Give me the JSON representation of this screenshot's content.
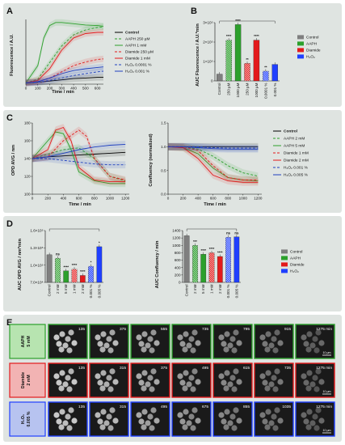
{
  "panels": {
    "A": {
      "label": "A",
      "ylabel": "Fluorescence / A.U.",
      "xlabel": "Time / min",
      "xticks": [
        "0",
        "100",
        "200",
        "300",
        "400",
        "500",
        "600"
      ],
      "legend": [
        {
          "name": "Control",
          "color": "#000000",
          "dash": "0"
        },
        {
          "name": "AAPH 250 µM",
          "color": "#2ca02c",
          "dash": "3,2"
        },
        {
          "name": "AAPH 1 mM",
          "color": "#2ca02c",
          "dash": "0"
        },
        {
          "name": "Diamide 250 µM",
          "color": "#e31a1c",
          "dash": "3,2"
        },
        {
          "name": "Diamide 1 mM",
          "color": "#e31a1c",
          "dash": "0"
        },
        {
          "name": "H₂O₂ 0.0001 %",
          "color": "#1f3fbf",
          "dash": "3,2"
        },
        {
          "name": "H₂O₂ 0.001 %",
          "color": "#1f3fbf",
          "dash": "0"
        }
      ]
    },
    "B": {
      "label": "B",
      "ylabel": "AUC Fluorescence / A.U.*min",
      "yticks": [
        "0",
        "1×10⁵",
        "2×10⁵",
        "3×10⁵"
      ],
      "categories": [
        "Control",
        "250 µM",
        "1000 µM",
        "250 µM",
        "1000 µM",
        "0.0001 %",
        "0.001 %"
      ],
      "legend": [
        {
          "name": "Control",
          "color": "#7f7f7f"
        },
        {
          "name": "AAPH",
          "color": "#2ca02c"
        },
        {
          "name": "Diamide",
          "color": "#e31a1c"
        },
        {
          "name": "H₂O₂",
          "color": "#1f3fff"
        }
      ],
      "sig": [
        "****",
        "****",
        "**",
        "****",
        "**"
      ]
    },
    "C": {
      "label": "C",
      "left": {
        "ylabel": "OPD AVG / nm",
        "xlabel": "Time / min",
        "yticks": [
          "100",
          "120",
          "140",
          "160",
          "180"
        ],
        "xticks": [
          "0",
          "200",
          "400",
          "600",
          "800",
          "1000",
          "1200"
        ]
      },
      "right": {
        "ylabel": "Confluency (normalized)",
        "xlabel": "Time / min",
        "yticks": [
          "0.0",
          "0.5",
          "1.0",
          "1.5"
        ],
        "xticks": [
          "0",
          "200",
          "400",
          "600",
          "800",
          "1000",
          "1200"
        ]
      },
      "legend": [
        {
          "name": "Control",
          "color": "#000000",
          "dash": "0"
        },
        {
          "name": "AAPH 2 mM",
          "color": "#2ca02c",
          "dash": "3,2"
        },
        {
          "name": "AAPH 5 mM",
          "color": "#2ca02c",
          "dash": "0"
        },
        {
          "name": "Diamide 1 mM",
          "color": "#e31a1c",
          "dash": "3,2"
        },
        {
          "name": "Diamide 2 mM",
          "color": "#e31a1c",
          "dash": "0"
        },
        {
          "name": "H₂O₂ 0.001 %",
          "color": "#1f3fbf",
          "dash": "3,2"
        },
        {
          "name": "H₂O₂ 0.005 %",
          "color": "#1f3fbf",
          "dash": "0"
        }
      ]
    },
    "D": {
      "label": "D",
      "left": {
        "ylabel": "AUC OPD AVG / nm*min",
        "yticks": [
          "7.0×10⁴",
          "1.0×10⁵",
          "1.3×10⁵",
          "1.6×10⁵"
        ],
        "categories": [
          "Control",
          "2 mM",
          "5 mM",
          "1 mM",
          "2 mM",
          "0.001 %",
          "0.005 %"
        ],
        "sig": [
          "ns",
          "****",
          "****",
          "****",
          "*",
          "*"
        ]
      },
      "right": {
        "ylabel": "AUC Confluency / min",
        "yticks": [
          "0",
          "200",
          "400",
          "600",
          "800",
          "1000",
          "1200",
          "1400"
        ],
        "categories": [
          "Control",
          "2 mM",
          "5 mM",
          "1 mM",
          "2 mM",
          "0.001 %",
          "0.005 %"
        ],
        "sig": [
          "***",
          "****",
          "****",
          "****",
          "ns",
          "ns"
        ]
      },
      "legend": [
        {
          "name": "Control",
          "color": "#7f7f7f"
        },
        {
          "name": "AAPH",
          "color": "#2ca02c"
        },
        {
          "name": "Diamide",
          "color": "#e31a1c"
        },
        {
          "name": "H₂O₂",
          "color": "#1f3fff"
        }
      ]
    },
    "E": {
      "label": "E",
      "scale": "10 µm",
      "rows": [
        {
          "label1": "AAPH",
          "label2": "5 mM",
          "border": "#2ca02c",
          "bg": "#b7e4b0",
          "times": [
            "135",
            "375",
            "555",
            "735",
            "795",
            "915",
            "1275 min"
          ]
        },
        {
          "label1": "Diamide",
          "label2": "2 mM",
          "border": "#e31a1c",
          "bg": "#f2b3b3",
          "times": [
            "135",
            "315",
            "375",
            "495",
            "615",
            "735",
            "1275 min"
          ]
        },
        {
          "label1": "H₂O₂",
          "label2": "0.005 %",
          "border": "#1f3fff",
          "bg": "#b7c3f0",
          "times": [
            "135",
            "315",
            "495",
            "675",
            "855",
            "1035",
            "1275 min"
          ]
        }
      ]
    }
  },
  "chart_data": [
    {
      "type": "line",
      "title": "",
      "xlabel": "Time / min",
      "ylabel": "Fluorescence / A.U.",
      "xlim": [
        0,
        650
      ],
      "series": [
        {
          "name": "Control",
          "x": [
            0,
            100,
            200,
            300,
            400,
            500,
            600,
            650
          ],
          "y": [
            0.02,
            0.03,
            0.05,
            0.07,
            0.09,
            0.1,
            0.11,
            0.11
          ]
        },
        {
          "name": "AAPH 250 µM",
          "x": [
            0,
            100,
            200,
            300,
            400,
            500,
            600,
            650
          ],
          "y": [
            0.02,
            0.08,
            0.35,
            0.62,
            0.8,
            0.88,
            0.92,
            0.93
          ]
        },
        {
          "name": "AAPH 1 mM",
          "x": [
            0,
            100,
            150,
            200,
            250,
            300,
            400,
            500,
            600,
            650
          ],
          "y": [
            0.02,
            0.3,
            0.75,
            0.95,
            1.0,
            1.0,
            0.98,
            0.96,
            0.95,
            0.94
          ]
        },
        {
          "name": "Diamide 250 µM",
          "x": [
            0,
            100,
            200,
            300,
            400,
            500,
            600,
            650
          ],
          "y": [
            0.02,
            0.04,
            0.1,
            0.2,
            0.3,
            0.36,
            0.4,
            0.41
          ]
        },
        {
          "name": "Diamide 1 mM",
          "x": [
            0,
            100,
            200,
            300,
            400,
            500,
            600,
            650
          ],
          "y": [
            0.02,
            0.06,
            0.25,
            0.55,
            0.75,
            0.82,
            0.84,
            0.84
          ]
        },
        {
          "name": "H₂O₂ 0.0001 %",
          "x": [
            0,
            100,
            200,
            300,
            400,
            500,
            600,
            650
          ],
          "y": [
            0.02,
            0.03,
            0.06,
            0.1,
            0.14,
            0.17,
            0.2,
            0.21
          ]
        },
        {
          "name": "H₂O₂ 0.001 %",
          "x": [
            0,
            100,
            200,
            300,
            400,
            500,
            600,
            650
          ],
          "y": [
            0.02,
            0.04,
            0.1,
            0.17,
            0.22,
            0.25,
            0.27,
            0.28
          ]
        }
      ]
    },
    {
      "type": "bar",
      "title": "",
      "ylabel": "AUC Fluorescence / A.U.*min",
      "categories": [
        "Control",
        "AAPH 250 µM",
        "AAPH 1000 µM",
        "Diamide 250 µM",
        "Diamide 1000 µM",
        "H₂O₂ 0.0001 %",
        "H₂O₂ 0.001 %"
      ],
      "values": [
        35000,
        210000,
        290000,
        90000,
        210000,
        50000,
        85000
      ],
      "ylim": [
        0,
        300000
      ]
    },
    {
      "type": "line",
      "title": "",
      "xlabel": "Time / min",
      "ylabel": "OPD AVG / nm",
      "xlim": [
        0,
        1250
      ],
      "ylim": [
        100,
        180
      ],
      "series": [
        {
          "name": "Control",
          "x": [
            0,
            200,
            400,
            600,
            800,
            1000,
            1200
          ],
          "y": [
            140,
            142,
            143,
            144,
            145,
            146,
            147
          ]
        },
        {
          "name": "AAPH 2 mM",
          "x": [
            0,
            200,
            400,
            600,
            800,
            1000,
            1200
          ],
          "y": [
            140,
            145,
            150,
            152,
            140,
            120,
            115
          ]
        },
        {
          "name": "AAPH 5 mM",
          "x": [
            0,
            200,
            300,
            400,
            500,
            600,
            800,
            1000,
            1200
          ],
          "y": [
            140,
            160,
            170,
            168,
            150,
            125,
            115,
            112,
            112
          ]
        },
        {
          "name": "Diamide 1 mM",
          "x": [
            0,
            200,
            400,
            600,
            700,
            800,
            1000,
            1200
          ],
          "y": [
            140,
            142,
            160,
            172,
            165,
            140,
            120,
            116
          ]
        },
        {
          "name": "Diamide 2 mM",
          "x": [
            0,
            200,
            300,
            400,
            500,
            600,
            800,
            1000,
            1200
          ],
          "y": [
            140,
            150,
            172,
            175,
            160,
            130,
            116,
            114,
            114
          ]
        },
        {
          "name": "H₂O₂ 0.001 %",
          "x": [
            0,
            200,
            400,
            600,
            800,
            1000,
            1200
          ],
          "y": [
            140,
            140,
            138,
            136,
            134,
            133,
            133
          ]
        },
        {
          "name": "H₂O₂ 0.005 %",
          "x": [
            0,
            200,
            400,
            600,
            800,
            1000,
            1200
          ],
          "y": [
            140,
            142,
            146,
            150,
            153,
            155,
            156
          ]
        }
      ]
    },
    {
      "type": "line",
      "title": "",
      "xlabel": "Time / min",
      "ylabel": "Confluency (normalized)",
      "xlim": [
        0,
        1250
      ],
      "ylim": [
        0,
        1.5
      ],
      "series": [
        {
          "name": "Control",
          "x": [
            0,
            200,
            400,
            600,
            800,
            1000,
            1200
          ],
          "y": [
            1.0,
            1.0,
            1.0,
            1.0,
            1.0,
            1.0,
            1.0
          ]
        },
        {
          "name": "AAPH 2 mM",
          "x": [
            0,
            200,
            400,
            600,
            800,
            1000,
            1200
          ],
          "y": [
            1.0,
            1.0,
            0.95,
            0.8,
            0.6,
            0.45,
            0.38
          ]
        },
        {
          "name": "AAPH 5 mM",
          "x": [
            0,
            200,
            400,
            600,
            800,
            1000,
            1200
          ],
          "y": [
            1.0,
            0.98,
            0.85,
            0.55,
            0.35,
            0.3,
            0.28
          ]
        },
        {
          "name": "Diamide 1 mM",
          "x": [
            0,
            200,
            400,
            600,
            800,
            1000,
            1200
          ],
          "y": [
            1.0,
            1.0,
            0.92,
            0.6,
            0.35,
            0.3,
            0.3
          ]
        },
        {
          "name": "Diamide 2 mM",
          "x": [
            0,
            200,
            400,
            600,
            800,
            1000,
            1200
          ],
          "y": [
            1.0,
            0.98,
            0.75,
            0.4,
            0.28,
            0.25,
            0.25
          ]
        },
        {
          "name": "H₂O₂ 0.001 %",
          "x": [
            0,
            200,
            400,
            600,
            800,
            1000,
            1200
          ],
          "y": [
            1.0,
            1.0,
            1.0,
            0.98,
            0.97,
            0.97,
            0.97
          ]
        },
        {
          "name": "H₂O₂ 0.005 %",
          "x": [
            0,
            200,
            400,
            600,
            800,
            1000,
            1200
          ],
          "y": [
            1.0,
            1.0,
            0.98,
            0.96,
            0.95,
            0.95,
            0.95
          ]
        }
      ]
    },
    {
      "type": "bar",
      "title": "",
      "ylabel": "AUC OPD AVG / nm*min",
      "categories": [
        "Control",
        "AAPH 2 mM",
        "AAPH 5 mM",
        "Diamide 1 mM",
        "Diamide 2 mM",
        "H₂O₂ 0.001 %",
        "H₂O₂ 0.005 %"
      ],
      "values": [
        118000,
        112000,
        90000,
        93000,
        82000,
        98000,
        132000
      ],
      "ylim": [
        70000,
        160000
      ]
    },
    {
      "type": "bar",
      "title": "",
      "ylabel": "AUC Confluency / min",
      "categories": [
        "Control",
        "AAPH 2 mM",
        "AAPH 5 mM",
        "Diamide 1 mM",
        "Diamide 2 mM",
        "H₂O₂ 0.001 %",
        "H₂O₂ 0.005 %"
      ],
      "values": [
        1260,
        1000,
        760,
        800,
        700,
        1220,
        1230
      ],
      "ylim": [
        0,
        1400
      ]
    }
  ]
}
